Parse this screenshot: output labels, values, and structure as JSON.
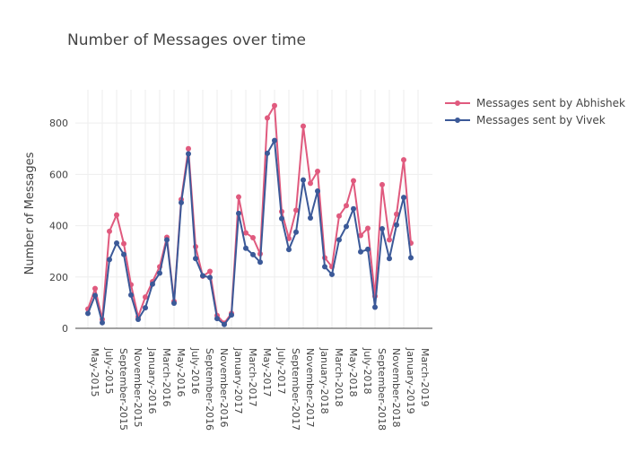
{
  "chart_data": {
    "type": "line",
    "title": "Number of Messages over time",
    "xlabel": "",
    "ylabel": "Number of Messages",
    "ylim": [
      0,
      930
    ],
    "yticks": [
      0,
      200,
      400,
      600,
      800
    ],
    "x_tick_labels": [
      "May-2015",
      "July-2015",
      "September-2015",
      "November-2015",
      "January-2016",
      "March-2016",
      "May-2016",
      "July-2016",
      "September-2016",
      "November-2016",
      "January-2017",
      "March-2017",
      "May-2017",
      "July-2017",
      "September-2017",
      "November-2017",
      "January-2018",
      "March-2018",
      "May-2018",
      "July-2018",
      "September-2018",
      "November-2018",
      "January-2019",
      "March-2019"
    ],
    "legend_position": "top-right",
    "grid": true,
    "series": [
      {
        "name": "Messages sent by Abhishek",
        "color": "#e05a7e",
        "points": [
          [
            "2015-05",
            75
          ],
          [
            "2015-06",
            155
          ],
          [
            "2015-07",
            35
          ],
          [
            "2015-08",
            378
          ],
          [
            "2015-09",
            442
          ],
          [
            "2015-10",
            330
          ],
          [
            "2015-11",
            170
          ],
          [
            "2015-12",
            45
          ],
          [
            "2016-01",
            122
          ],
          [
            "2016-02",
            182
          ],
          [
            "2016-03",
            240
          ],
          [
            "2016-04",
            355
          ],
          [
            "2016-05",
            105
          ],
          [
            "2016-06",
            502
          ],
          [
            "2016-07",
            700
          ],
          [
            "2016-08",
            318
          ],
          [
            "2016-09",
            203
          ],
          [
            "2016-10",
            222
          ],
          [
            "2016-11",
            50
          ],
          [
            "2016-12",
            20
          ],
          [
            "2017-01",
            58
          ],
          [
            "2017-02",
            512
          ],
          [
            "2017-03",
            372
          ],
          [
            "2017-04",
            353
          ],
          [
            "2017-05",
            290
          ],
          [
            "2017-06",
            820
          ],
          [
            "2017-07",
            868
          ],
          [
            "2017-08",
            455
          ],
          [
            "2017-09",
            350
          ],
          [
            "2017-10",
            460
          ],
          [
            "2017-11",
            788
          ],
          [
            "2017-12",
            565
          ],
          [
            "2018-01",
            612
          ],
          [
            "2018-02",
            275
          ],
          [
            "2018-03",
            240
          ],
          [
            "2018-04",
            438
          ],
          [
            "2018-05",
            478
          ],
          [
            "2018-06",
            575
          ],
          [
            "2018-07",
            362
          ],
          [
            "2018-08",
            390
          ],
          [
            "2018-09",
            125
          ],
          [
            "2018-10",
            560
          ],
          [
            "2018-11",
            345
          ],
          [
            "2018-12",
            445
          ],
          [
            "2019-01",
            657
          ],
          [
            "2019-02",
            332
          ]
        ]
      },
      {
        "name": "Messages sent by Vivek",
        "color": "#3b5998",
        "points": [
          [
            "2015-05",
            58
          ],
          [
            "2015-06",
            128
          ],
          [
            "2015-07",
            22
          ],
          [
            "2015-08",
            268
          ],
          [
            "2015-09",
            332
          ],
          [
            "2015-10",
            288
          ],
          [
            "2015-11",
            130
          ],
          [
            "2015-12",
            35
          ],
          [
            "2016-01",
            80
          ],
          [
            "2016-02",
            172
          ],
          [
            "2016-03",
            215
          ],
          [
            "2016-04",
            345
          ],
          [
            "2016-05",
            98
          ],
          [
            "2016-06",
            490
          ],
          [
            "2016-07",
            680
          ],
          [
            "2016-08",
            272
          ],
          [
            "2016-09",
            205
          ],
          [
            "2016-10",
            198
          ],
          [
            "2016-11",
            38
          ],
          [
            "2016-12",
            15
          ],
          [
            "2017-01",
            52
          ],
          [
            "2017-02",
            448
          ],
          [
            "2017-03",
            312
          ],
          [
            "2017-04",
            287
          ],
          [
            "2017-05",
            258
          ],
          [
            "2017-06",
            682
          ],
          [
            "2017-07",
            732
          ],
          [
            "2017-08",
            428
          ],
          [
            "2017-09",
            307
          ],
          [
            "2017-10",
            375
          ],
          [
            "2017-11",
            578
          ],
          [
            "2017-12",
            430
          ],
          [
            "2018-01",
            535
          ],
          [
            "2018-02",
            240
          ],
          [
            "2018-03",
            210
          ],
          [
            "2018-04",
            345
          ],
          [
            "2018-05",
            397
          ],
          [
            "2018-06",
            466
          ],
          [
            "2018-07",
            298
          ],
          [
            "2018-08",
            308
          ],
          [
            "2018-09",
            82
          ],
          [
            "2018-10",
            388
          ],
          [
            "2018-11",
            272
          ],
          [
            "2018-12",
            403
          ],
          [
            "2019-01",
            510
          ],
          [
            "2019-02",
            275
          ]
        ]
      }
    ]
  }
}
